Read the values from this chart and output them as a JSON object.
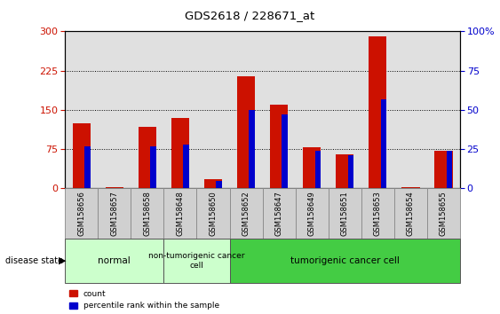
{
  "title": "GDS2618 / 228671_at",
  "samples": [
    "GSM158656",
    "GSM158657",
    "GSM158658",
    "GSM158648",
    "GSM158650",
    "GSM158652",
    "GSM158647",
    "GSM158649",
    "GSM158651",
    "GSM158653",
    "GSM158654",
    "GSM158655"
  ],
  "counts": [
    125,
    2,
    118,
    135,
    18,
    215,
    160,
    78,
    65,
    290,
    2,
    72
  ],
  "percentiles": [
    27,
    0,
    27,
    28,
    5,
    50,
    47,
    24,
    21,
    57,
    0,
    24
  ],
  "groups": [
    {
      "label": "normal",
      "start": 0,
      "end": 3,
      "color": "#ccffcc"
    },
    {
      "label": "non-tumorigenic cancer\ncell",
      "start": 3,
      "end": 5,
      "color": "#ddffdd"
    },
    {
      "label": "tumorigenic cancer cell",
      "start": 5,
      "end": 12,
      "color": "#44dd44"
    }
  ],
  "ylim_left": [
    0,
    300
  ],
  "ylim_right": [
    0,
    100
  ],
  "yticks_left": [
    0,
    75,
    150,
    225,
    300
  ],
  "yticks_right": [
    0,
    25,
    50,
    75,
    100
  ],
  "count_color": "#cc1100",
  "percentile_color": "#0000cc",
  "grid_color": "#000000",
  "legend_label_count": "count",
  "legend_label_percentile": "percentile rank within the sample",
  "disease_state_label": "disease state",
  "background_color": "#ffffff",
  "plot_bg_color": "#e0e0e0",
  "sample_box_color": "#d0d0d0",
  "normal_group_color": "#ccffcc",
  "nontumor_group_color": "#ccffcc",
  "tumor_group_color": "#44cc44"
}
